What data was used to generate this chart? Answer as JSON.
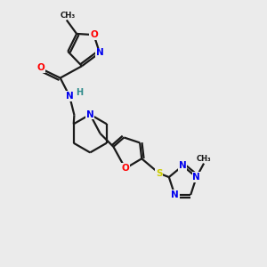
{
  "background_color": "#ebebeb",
  "bond_color": "#1a1a1a",
  "atom_colors": {
    "O": "#ff0000",
    "N": "#0000ee",
    "S": "#cccc00",
    "C": "#1a1a1a",
    "H": "#2e8b8b"
  },
  "figsize": [
    3.0,
    3.0
  ],
  "dpi": 100,
  "xlim": [
    0,
    10
  ],
  "ylim": [
    0,
    10
  ]
}
